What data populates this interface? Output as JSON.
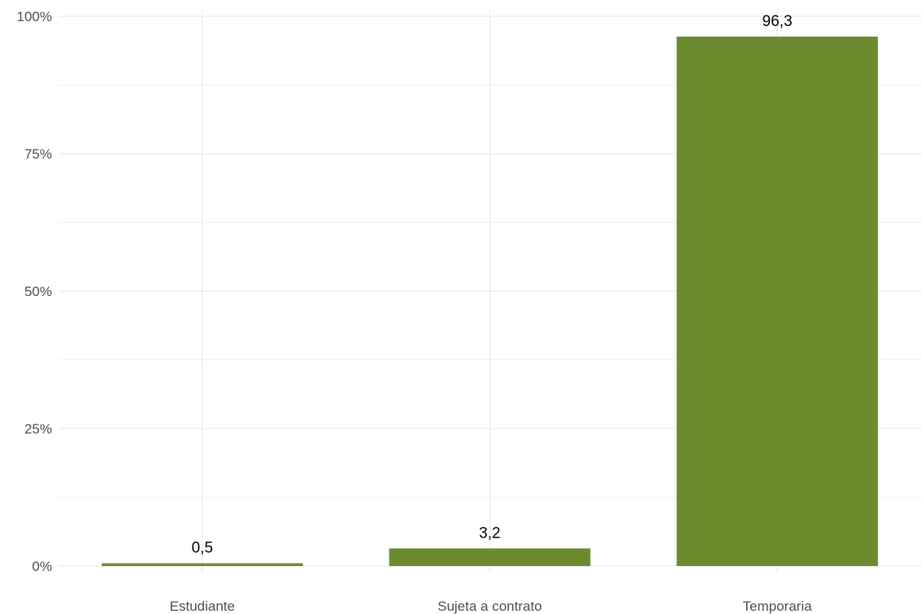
{
  "chart_data": {
    "type": "bar",
    "title": "",
    "xlabel": "",
    "ylabel": "",
    "categories": [
      "Estudiante",
      "Sujeta a contrato",
      "Temporaria"
    ],
    "values": [
      0.5,
      3.2,
      96.3
    ],
    "data_labels": [
      "0,5",
      "3,2",
      "96,3"
    ],
    "ylim": [
      0,
      100
    ],
    "y_ticks": [
      0,
      25,
      50,
      75,
      100
    ],
    "y_tick_labels": [
      "0%",
      "25%",
      "50%",
      "75%",
      "100%"
    ],
    "grid": true,
    "legend": "none",
    "bar_color": "#6a8c2f",
    "grid_color": "#ebebeb"
  }
}
